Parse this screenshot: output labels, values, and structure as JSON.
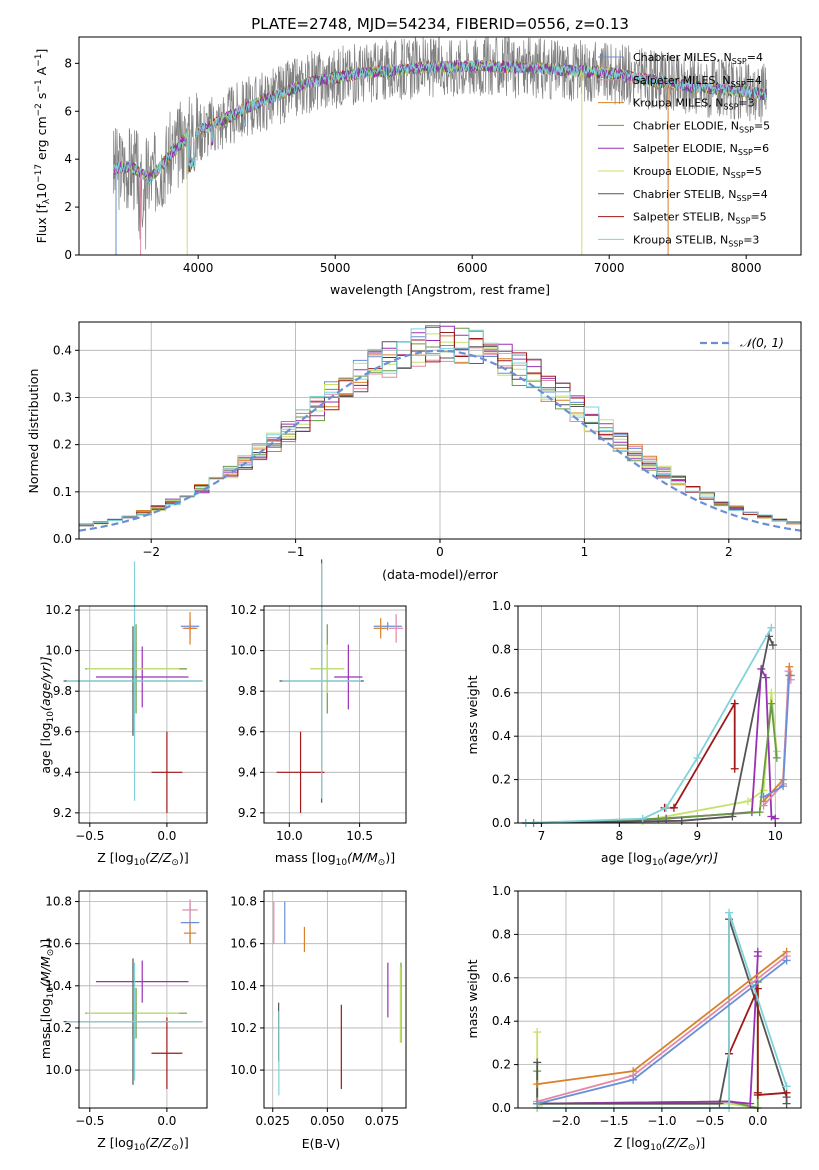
{
  "colors": {
    "chabrier_miles": "#6a8fd6",
    "salpeter_miles": "#e08aa8",
    "kroupa_miles": "#d9802a",
    "chabrier_elodie": "#6a9a45",
    "salpeter_elodie": "#9a30b6",
    "kroupa_elodie": "#c6e26c",
    "chabrier_stelib": "#555555",
    "salpeter_stelib": "#a01818",
    "kroupa_stelib": "#7fd3d9",
    "gaussian": "#6a8fd6"
  },
  "chart_data": [
    {
      "id": "spectrum",
      "type": "line",
      "title": "PLATE=2748, MJD=54234, FIBERID=0556, z=0.13",
      "xlabel": "wavelength [Angstrom, rest frame]",
      "ylabel": "Flux [f",
      "ylabel_parts": [
        "Flux [f",
        "λ",
        "10",
        "−17",
        " erg cm",
        "−2",
        " s",
        "−1",
        " A",
        "−1",
        "]"
      ],
      "xlim": [
        3130,
        8400
      ],
      "ylim": [
        0,
        9.1
      ],
      "xticks": [
        4000,
        5000,
        6000,
        7000,
        8000
      ],
      "yticks": [
        0,
        2,
        4,
        6,
        8
      ],
      "continuum": {
        "x": [
          3380,
          3500,
          3650,
          3800,
          3950,
          4100,
          4300,
          4500,
          4800,
          5200,
          5600,
          6000,
          6500,
          7000,
          7500,
          8000,
          8150
        ],
        "y": [
          3.6,
          3.7,
          3.2,
          4.2,
          5.1,
          5.4,
          6.0,
          6.5,
          7.2,
          7.6,
          7.8,
          7.9,
          7.8,
          7.6,
          7.1,
          6.8,
          6.7
        ]
      },
      "legend": {
        "placement": "top-right",
        "entries": [
          {
            "label": "Chabrier MILES, N",
            "sub": "SSP",
            "suffix": "=4",
            "color": "chabrier_miles"
          },
          {
            "label": "Salpeter MILES, N",
            "sub": "SSP",
            "suffix": "=4",
            "color": "salpeter_miles"
          },
          {
            "label": "Kroupa MILES, N",
            "sub": "SSP",
            "suffix": "=3",
            "color": "kroupa_miles"
          },
          {
            "label": "Chabrier ELODIE, N",
            "sub": "SSP",
            "suffix": "=5",
            "color": "chabrier_elodie"
          },
          {
            "label": "Salpeter ELODIE, N",
            "sub": "SSP",
            "suffix": "=6",
            "color": "salpeter_elodie"
          },
          {
            "label": "Kroupa ELODIE, N",
            "sub": "SSP",
            "suffix": "=5",
            "color": "kroupa_elodie"
          },
          {
            "label": "Chabrier STELIB, N",
            "sub": "SSP",
            "suffix": "=4",
            "color": "chabrier_stelib"
          },
          {
            "label": "Salpeter STELIB, N",
            "sub": "SSP",
            "suffix": "=5",
            "color": "salpeter_stelib"
          },
          {
            "label": "Kroupa STELIB, N",
            "sub": "SSP",
            "suffix": "=3",
            "color": "kroupa_stelib"
          }
        ]
      }
    },
    {
      "id": "residuals",
      "type": "line",
      "xlabel": "(data-model)/error",
      "ylabel": "Normed distribution",
      "xlim": [
        -2.5,
        2.5
      ],
      "ylim": [
        0,
        0.46
      ],
      "xticks": [
        -2,
        -1,
        0,
        1,
        2
      ],
      "yticks": [
        0.0,
        0.1,
        0.2,
        0.3,
        0.4
      ],
      "grid": true,
      "legend": {
        "placement": "top-right",
        "label": "𝒩(0, 1)",
        "color": "gaussian"
      },
      "bin_width": 0.1,
      "series": [
        {
          "color": "chabrier_miles",
          "seed": 1
        },
        {
          "color": "salpeter_miles",
          "seed": 2
        },
        {
          "color": "kroupa_miles",
          "seed": 3
        },
        {
          "color": "chabrier_elodie",
          "seed": 4
        },
        {
          "color": "salpeter_elodie",
          "seed": 5
        },
        {
          "color": "kroupa_elodie",
          "seed": 6
        },
        {
          "color": "chabrier_stelib",
          "seed": 7
        },
        {
          "color": "salpeter_stelib",
          "seed": 8
        },
        {
          "color": "kroupa_stelib",
          "seed": 9
        }
      ]
    },
    {
      "id": "age_vs_Z",
      "type": "scatter",
      "xlabel": "Z [log",
      "xlabel_parts": [
        "Z [log",
        "10",
        "(Z/Z",
        "⊙",
        ")]"
      ],
      "ylabel_parts": [
        "age  [log",
        "10",
        "(age/yr)]"
      ],
      "xlim": [
        -0.57,
        0.26
      ],
      "ylim": [
        9.15,
        10.22
      ],
      "xticks": [
        -0.5,
        0.0
      ],
      "yticks": [
        9.2,
        9.4,
        9.6,
        9.8,
        10.0,
        10.2
      ],
      "grid": true,
      "points": [
        {
          "x": 0.15,
          "y": 10.12,
          "xerr": 0.06,
          "yerr": 0.02,
          "color": "chabrier_miles"
        },
        {
          "x": 0.15,
          "y": 10.11,
          "xerr": 0.05,
          "yerr": 0.05,
          "color": "salpeter_miles"
        },
        {
          "x": 0.15,
          "y": 10.11,
          "xerr": 0.04,
          "yerr": 0.08,
          "color": "kroupa_miles"
        },
        {
          "x": -0.2,
          "y": 9.91,
          "xerr": 0.33,
          "yerr": 0.22,
          "color": "chabrier_elodie"
        },
        {
          "x": -0.16,
          "y": 9.87,
          "xerr": 0.3,
          "yerr": 0.15,
          "color": "salpeter_elodie"
        },
        {
          "x": -0.22,
          "y": 9.91,
          "xerr": 0.3,
          "yerr": 0.12,
          "color": "kroupa_elodie"
        },
        {
          "x": -0.22,
          "y": 9.85,
          "xerr": 0.45,
          "yerr": 0.27,
          "color": "chabrier_stelib"
        },
        {
          "x": 0.0,
          "y": 9.4,
          "xerr": 0.1,
          "yerr": 0.2,
          "color": "salpeter_stelib"
        },
        {
          "x": -0.21,
          "y": 9.85,
          "xerr": 0.44,
          "yerr": 0.59,
          "color": "kroupa_stelib"
        }
      ]
    },
    {
      "id": "age_vs_mass",
      "type": "scatter",
      "xlabel_parts": [
        "mass [log",
        "10",
        "(M/M",
        "⊙",
        ")]"
      ],
      "xlim": [
        9.82,
        10.83
      ],
      "ylim": [
        9.15,
        10.22
      ],
      "xticks": [
        10.0,
        10.5
      ],
      "yticks": [
        9.2,
        9.4,
        9.6,
        9.8,
        10.0,
        10.2
      ],
      "grid": true,
      "points": [
        {
          "x": 10.7,
          "y": 10.12,
          "xerr": 0.1,
          "yerr": 0.02,
          "color": "chabrier_miles"
        },
        {
          "x": 10.76,
          "y": 10.11,
          "xerr": 0.05,
          "yerr": 0.07,
          "color": "salpeter_miles"
        },
        {
          "x": 10.65,
          "y": 10.11,
          "xerr": 0.05,
          "yerr": 0.05,
          "color": "kroupa_miles"
        },
        {
          "x": 10.27,
          "y": 9.91,
          "xerr": 0.12,
          "yerr": 0.22,
          "color": "chabrier_elodie"
        },
        {
          "x": 10.42,
          "y": 9.87,
          "xerr": 0.1,
          "yerr": 0.16,
          "color": "salpeter_elodie"
        },
        {
          "x": 10.27,
          "y": 9.91,
          "xerr": 0.12,
          "yerr": 0.12,
          "color": "kroupa_elodie"
        },
        {
          "x": 10.23,
          "y": 9.85,
          "xerr": 0.3,
          "yerr": 0.6,
          "color": "chabrier_stelib"
        },
        {
          "x": 10.08,
          "y": 9.4,
          "xerr": 0.17,
          "yerr": 0.2,
          "color": "salpeter_stelib"
        },
        {
          "x": 10.23,
          "y": 9.85,
          "xerr": 0.28,
          "yerr": 0.58,
          "color": "kroupa_stelib"
        }
      ]
    },
    {
      "id": "weight_vs_age",
      "type": "line",
      "xlabel_parts": [
        "age  [log",
        "10",
        "(age/yr)]"
      ],
      "ylabel": "mass weight",
      "xlim": [
        6.7,
        10.33
      ],
      "ylim": [
        0,
        1.0
      ],
      "xticks": [
        7,
        8,
        9,
        10
      ],
      "yticks": [
        0.0,
        0.2,
        0.4,
        0.6,
        0.8,
        1.0
      ],
      "grid": true,
      "series": [
        {
          "color": "kroupa_elodie",
          "x": [
            6.8,
            8.3,
            9.65,
            9.85,
            9.95,
            10.02
          ],
          "y": [
            0.0,
            0.01,
            0.1,
            0.15,
            0.6,
            0.33
          ]
        },
        {
          "color": "salpeter_elodie",
          "x": [
            6.8,
            8.6,
            9.7,
            9.82,
            9.88,
            9.95,
            10.0
          ],
          "y": [
            0.0,
            0.02,
            0.05,
            0.71,
            0.67,
            0.03,
            0.02
          ]
        },
        {
          "color": "chabrier_elodie",
          "x": [
            6.9,
            8.5,
            9.8,
            9.95,
            10.02
          ],
          "y": [
            0.0,
            0.02,
            0.05,
            0.55,
            0.3
          ]
        },
        {
          "color": "chabrier_stelib",
          "x": [
            6.8,
            8.8,
            9.45,
            9.92,
            9.97
          ],
          "y": [
            0.0,
            0.01,
            0.03,
            0.86,
            0.82
          ]
        },
        {
          "color": "salpeter_stelib",
          "x": [
            8.58,
            8.7,
            9.48,
            9.48
          ],
          "y": [
            0.07,
            0.07,
            0.55,
            0.25
          ]
        },
        {
          "color": "kroupa_stelib",
          "x": [
            6.8,
            8.3,
            8.6,
            9.0,
            9.95
          ],
          "y": [
            0.0,
            0.02,
            0.07,
            0.3,
            0.9
          ]
        },
        {
          "color": "kroupa_miles",
          "x": [
            9.85,
            10.1,
            10.18,
            10.2
          ],
          "y": [
            0.1,
            0.2,
            0.72,
            0.68
          ]
        },
        {
          "color": "salpeter_miles",
          "x": [
            9.85,
            10.1,
            10.17,
            10.2
          ],
          "y": [
            0.08,
            0.18,
            0.7,
            0.66
          ]
        },
        {
          "color": "chabrier_miles",
          "x": [
            9.85,
            10.1,
            10.18
          ],
          "y": [
            0.12,
            0.17,
            0.68
          ]
        }
      ]
    },
    {
      "id": "mass_vs_Z",
      "type": "scatter",
      "xlabel_parts": [
        "Z [log",
        "10",
        "(Z/Z",
        "⊙",
        ")]"
      ],
      "ylabel_parts": [
        "mass [log",
        "10",
        "(M/M",
        "⊙",
        ")]"
      ],
      "xlim": [
        -0.57,
        0.26
      ],
      "ylim": [
        9.82,
        10.85
      ],
      "xticks": [
        -0.5,
        0.0
      ],
      "yticks": [
        10.0,
        10.2,
        10.4,
        10.6,
        10.8
      ],
      "grid": true,
      "points": [
        {
          "x": 0.15,
          "y": 10.7,
          "xerr": 0.06,
          "yerr": 0.1,
          "color": "chabrier_miles"
        },
        {
          "x": 0.15,
          "y": 10.76,
          "xerr": 0.05,
          "yerr": 0.05,
          "color": "salpeter_miles"
        },
        {
          "x": 0.15,
          "y": 10.65,
          "xerr": 0.04,
          "yerr": 0.05,
          "color": "kroupa_miles"
        },
        {
          "x": -0.2,
          "y": 10.27,
          "xerr": 0.33,
          "yerr": 0.12,
          "color": "chabrier_elodie"
        },
        {
          "x": -0.16,
          "y": 10.42,
          "xerr": 0.3,
          "yerr": 0.1,
          "color": "salpeter_elodie"
        },
        {
          "x": -0.22,
          "y": 10.27,
          "xerr": 0.3,
          "yerr": 0.12,
          "color": "kroupa_elodie"
        },
        {
          "x": -0.22,
          "y": 10.23,
          "xerr": 0.45,
          "yerr": 0.3,
          "color": "chabrier_stelib"
        },
        {
          "x": 0.0,
          "y": 10.08,
          "xerr": 0.1,
          "yerr": 0.17,
          "color": "salpeter_stelib"
        },
        {
          "x": -0.21,
          "y": 10.23,
          "xerr": 0.44,
          "yerr": 0.28,
          "color": "kroupa_stelib"
        }
      ]
    },
    {
      "id": "mass_vs_ebv",
      "type": "scatter",
      "xlabel": "E(B-V)",
      "xlim": [
        0.021,
        0.086
      ],
      "ylim": [
        9.82,
        10.85
      ],
      "xticks": [
        0.025,
        0.05,
        0.075
      ],
      "yticks": [
        10.0,
        10.2,
        10.4,
        10.6,
        10.8
      ],
      "xtick_labels": [
        "0.025",
        "0.050",
        "0.075"
      ],
      "grid": true,
      "points": [
        {
          "x": 0.0305,
          "y": 10.7,
          "xerr": 0,
          "yerr": 0.1,
          "color": "chabrier_miles"
        },
        {
          "x": 0.0255,
          "y": 10.7,
          "xerr": 0,
          "yerr": 0.1,
          "color": "salpeter_miles"
        },
        {
          "x": 0.0395,
          "y": 10.62,
          "xerr": 0,
          "yerr": 0.06,
          "color": "kroupa_miles"
        },
        {
          "x": 0.0837,
          "y": 10.32,
          "xerr": 0,
          "yerr": 0.19,
          "color": "chabrier_elodie"
        },
        {
          "x": 0.0777,
          "y": 10.38,
          "xerr": 0,
          "yerr": 0.13,
          "color": "salpeter_elodie"
        },
        {
          "x": 0.0834,
          "y": 10.31,
          "xerr": 0,
          "yerr": 0.18,
          "color": "kroupa_elodie"
        },
        {
          "x": 0.0277,
          "y": 10.18,
          "xerr": 0,
          "yerr": 0.14,
          "color": "chabrier_stelib"
        },
        {
          "x": 0.0564,
          "y": 10.11,
          "xerr": 0,
          "yerr": 0.2,
          "color": "salpeter_stelib"
        },
        {
          "x": 0.0278,
          "y": 10.08,
          "xerr": 0,
          "yerr": 0.2,
          "color": "kroupa_stelib"
        }
      ]
    },
    {
      "id": "weight_vs_Z",
      "type": "line",
      "xlabel_parts": [
        "Z [log",
        "10",
        "(Z/Z",
        "⊙",
        ")]"
      ],
      "ylabel": "mass weight",
      "xlim": [
        -2.5,
        0.45
      ],
      "ylim": [
        0,
        1.0
      ],
      "xticks": [
        -2.0,
        -1.5,
        -1.0,
        -0.5,
        0.0
      ],
      "yticks": [
        0.0,
        0.2,
        0.4,
        0.6,
        0.8,
        1.0
      ],
      "grid": true,
      "series": [
        {
          "color": "kroupa_elodie",
          "x": [
            -2.3,
            -2.3,
            -2.25,
            -0.3,
            0.0,
            0.0
          ],
          "y": [
            0.35,
            0.0,
            0.02,
            0.02,
            0.0,
            0.6
          ]
        },
        {
          "color": "chabrier_elodie",
          "x": [
            -2.3,
            -2.3,
            -0.3,
            0.0,
            0.0
          ],
          "y": [
            0.17,
            0.02,
            0.03,
            0.0,
            0.58
          ]
        },
        {
          "color": "salpeter_elodie",
          "x": [
            -2.3,
            -0.3,
            -0.08,
            0.0,
            0.0
          ],
          "y": [
            0.02,
            0.03,
            0.02,
            0.7,
            0.72
          ]
        },
        {
          "color": "chabrier_stelib",
          "x": [
            -2.3,
            -2.3,
            -0.4,
            -0.3,
            -0.3,
            0.3,
            0.3
          ],
          "y": [
            0.21,
            0.02,
            0.02,
            0.25,
            0.87,
            0.05,
            0.02
          ]
        },
        {
          "color": "salpeter_stelib",
          "x": [
            -0.3,
            0.0,
            0.0,
            0.0,
            0.3
          ],
          "y": [
            0.25,
            0.55,
            0.07,
            0.06,
            0.07
          ]
        },
        {
          "color": "kroupa_stelib",
          "x": [
            -2.3,
            -0.3,
            -0.3,
            0.3
          ],
          "y": [
            0.0,
            0.0,
            0.9,
            0.1
          ]
        },
        {
          "color": "kroupa_miles",
          "x": [
            -2.3,
            -1.3,
            0.3
          ],
          "y": [
            0.11,
            0.17,
            0.72
          ]
        },
        {
          "color": "salpeter_miles",
          "x": [
            -2.3,
            -1.3,
            0.3
          ],
          "y": [
            0.03,
            0.15,
            0.7
          ]
        },
        {
          "color": "chabrier_miles",
          "x": [
            -2.3,
            -1.3,
            0.3
          ],
          "y": [
            0.02,
            0.13,
            0.68
          ]
        }
      ]
    }
  ]
}
